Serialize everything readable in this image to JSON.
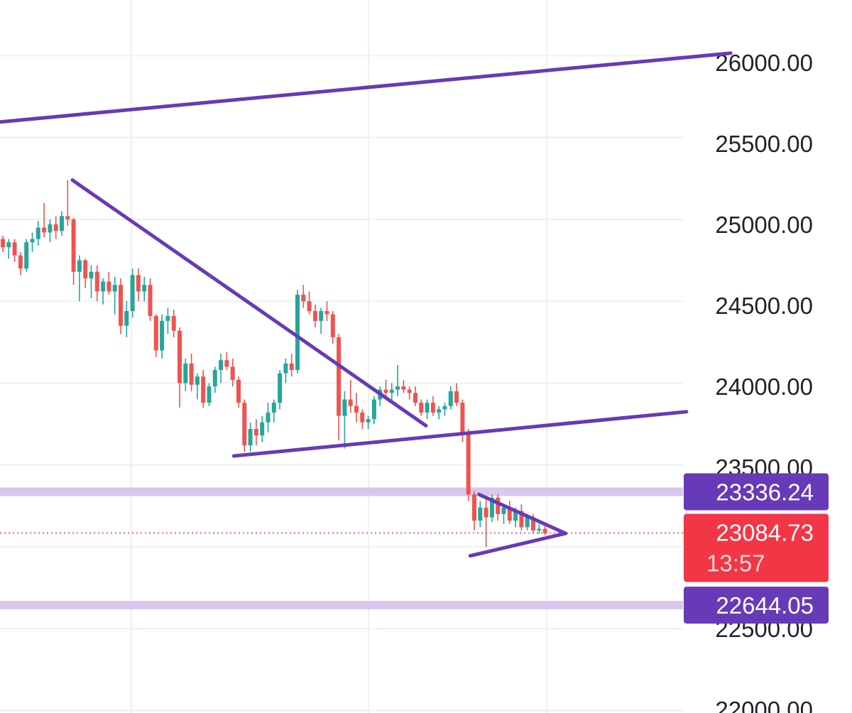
{
  "colors": {
    "up": "#26a69a",
    "down": "#ef5350",
    "trendline": "#673ab7",
    "zone": "#d9c8ee",
    "current_price": "#f23645",
    "level_badge": "#673ab7",
    "grid": "#eef0f3"
  },
  "chart_data": {
    "type": "candlestick",
    "title": "",
    "xlabel": "",
    "ylabel": "",
    "ylim": [
      21985,
      26340
    ],
    "y_ticks": [
      "26000.00",
      "25500.00",
      "25000.00",
      "24500.00",
      "24000.00",
      "23500.00",
      "22500.00",
      "22000.00"
    ],
    "grid": true,
    "candles": [
      [
        24880,
        24900,
        24800,
        24830
      ],
      [
        24830,
        24880,
        24760,
        24860
      ],
      [
        24860,
        24880,
        24740,
        24780
      ],
      [
        24780,
        24800,
        24660,
        24700
      ],
      [
        24700,
        24880,
        24680,
        24860
      ],
      [
        24860,
        24920,
        24800,
        24880
      ],
      [
        24880,
        24990,
        24840,
        24950
      ],
      [
        24950,
        25100,
        24890,
        24920
      ],
      [
        24920,
        25000,
        24860,
        24970
      ],
      [
        24970,
        25020,
        24880,
        24930
      ],
      [
        24930,
        25050,
        24900,
        25020
      ],
      [
        25020,
        25240,
        24960,
        25000
      ],
      [
        25000,
        25010,
        24600,
        24680
      ],
      [
        24680,
        24780,
        24500,
        24750
      ],
      [
        24750,
        24760,
        24580,
        24640
      ],
      [
        24640,
        24720,
        24520,
        24680
      ],
      [
        24680,
        24720,
        24500,
        24560
      ],
      [
        24560,
        24640,
        24480,
        24620
      ],
      [
        24620,
        24680,
        24540,
        24560
      ],
      [
        24560,
        24650,
        24420,
        24600
      ],
      [
        24600,
        24640,
        24300,
        24350
      ],
      [
        24350,
        24500,
        24280,
        24440
      ],
      [
        24440,
        24700,
        24400,
        24660
      ],
      [
        24660,
        24700,
        24500,
        24560
      ],
      [
        24560,
        24650,
        24500,
        24600
      ],
      [
        24600,
        24640,
        24380,
        24410
      ],
      [
        24410,
        24420,
        24160,
        24200
      ],
      [
        24200,
        24420,
        24150,
        24380
      ],
      [
        24380,
        24460,
        24300,
        24410
      ],
      [
        24410,
        24450,
        24280,
        24320
      ],
      [
        24320,
        24340,
        23850,
        24000
      ],
      [
        24000,
        24150,
        23950,
        24120
      ],
      [
        24120,
        24180,
        23950,
        23990
      ],
      [
        23990,
        24060,
        23900,
        24040
      ],
      [
        24040,
        24080,
        23850,
        23880
      ],
      [
        23880,
        24000,
        23860,
        23980
      ],
      [
        23980,
        24100,
        23940,
        24080
      ],
      [
        24080,
        24180,
        24000,
        24140
      ],
      [
        24140,
        24190,
        24080,
        24100
      ],
      [
        24100,
        24150,
        23980,
        24020
      ],
      [
        24020,
        24040,
        23850,
        23880
      ],
      [
        23880,
        23900,
        23580,
        23620
      ],
      [
        23620,
        23760,
        23580,
        23720
      ],
      [
        23720,
        23780,
        23620,
        23680
      ],
      [
        23680,
        23800,
        23640,
        23760
      ],
      [
        23760,
        23880,
        23700,
        23820
      ],
      [
        23820,
        23900,
        23760,
        23880
      ],
      [
        23880,
        24080,
        23840,
        24060
      ],
      [
        24060,
        24150,
        24000,
        24120
      ],
      [
        24120,
        24180,
        24040,
        24080
      ],
      [
        24080,
        24570,
        24060,
        24540
      ],
      [
        24540,
        24600,
        24460,
        24500
      ],
      [
        24500,
        24560,
        24420,
        24440
      ],
      [
        24440,
        24480,
        24340,
        24380
      ],
      [
        24380,
        24460,
        24300,
        24440
      ],
      [
        24440,
        24500,
        24380,
        24420
      ],
      [
        24420,
        24440,
        24240,
        24280
      ],
      [
        24280,
        24300,
        23650,
        23800
      ],
      [
        23800,
        23950,
        23600,
        23900
      ],
      [
        23900,
        24020,
        23820,
        23860
      ],
      [
        23860,
        23940,
        23760,
        23820
      ],
      [
        23820,
        23840,
        23720,
        23760
      ],
      [
        23760,
        23800,
        23720,
        23780
      ],
      [
        23780,
        23920,
        23750,
        23900
      ],
      [
        23900,
        23980,
        23860,
        23960
      ],
      [
        23960,
        24020,
        23900,
        23940
      ],
      [
        23940,
        24000,
        23880,
        23960
      ],
      [
        23960,
        24110,
        23920,
        23980
      ],
      [
        23980,
        24020,
        23940,
        23960
      ],
      [
        23960,
        23980,
        23900,
        23940
      ],
      [
        23940,
        23980,
        23860,
        23880
      ],
      [
        23880,
        23900,
        23800,
        23820
      ],
      [
        23820,
        23900,
        23780,
        23880
      ],
      [
        23880,
        23920,
        23800,
        23820
      ],
      [
        23820,
        23860,
        23780,
        23840
      ],
      [
        23840,
        23880,
        23800,
        23860
      ],
      [
        23860,
        23980,
        23840,
        23950
      ],
      [
        23950,
        24000,
        23860,
        23880
      ],
      [
        23880,
        23900,
        23640,
        23700
      ],
      [
        23700,
        23720,
        23280,
        23320
      ],
      [
        23320,
        23340,
        23100,
        23160
      ],
      [
        23160,
        23280,
        23120,
        23240
      ],
      [
        23240,
        23300,
        23000,
        23180
      ],
      [
        23180,
        23320,
        23150,
        23300
      ],
      [
        23300,
        23320,
        23160,
        23200
      ],
      [
        23200,
        23260,
        23140,
        23240
      ],
      [
        23240,
        23280,
        23140,
        23160
      ],
      [
        23160,
        23240,
        23120,
        23220
      ],
      [
        23220,
        23260,
        23100,
        23120
      ],
      [
        23120,
        23200,
        23100,
        23180
      ],
      [
        23180,
        23200,
        23080,
        23100
      ],
      [
        23100,
        23140,
        23080,
        23110
      ],
      [
        23110,
        23130,
        23070,
        23085
      ]
    ],
    "trendlines": [
      {
        "x": [
          -0.5,
          123.5
        ],
        "y": [
          25595,
          26015
        ]
      },
      {
        "x": [
          11.8,
          71.8
        ],
        "y": [
          25240,
          23740
        ]
      },
      {
        "x": [
          39.2,
          116
        ],
        "y": [
          23555,
          23825
        ]
      },
      {
        "x": [
          80.8,
          95.5
        ],
        "y": [
          23320,
          23082
        ]
      },
      {
        "x": [
          79.3,
          95.5
        ],
        "y": [
          22945,
          23082
        ]
      }
    ],
    "zones": [
      23336.24,
      22644.05
    ],
    "current_price": 23084.73
  },
  "badges": {
    "resistance": "23336.24",
    "current_price": "23084.73",
    "countdown": "13:57",
    "support": "22644.05"
  }
}
